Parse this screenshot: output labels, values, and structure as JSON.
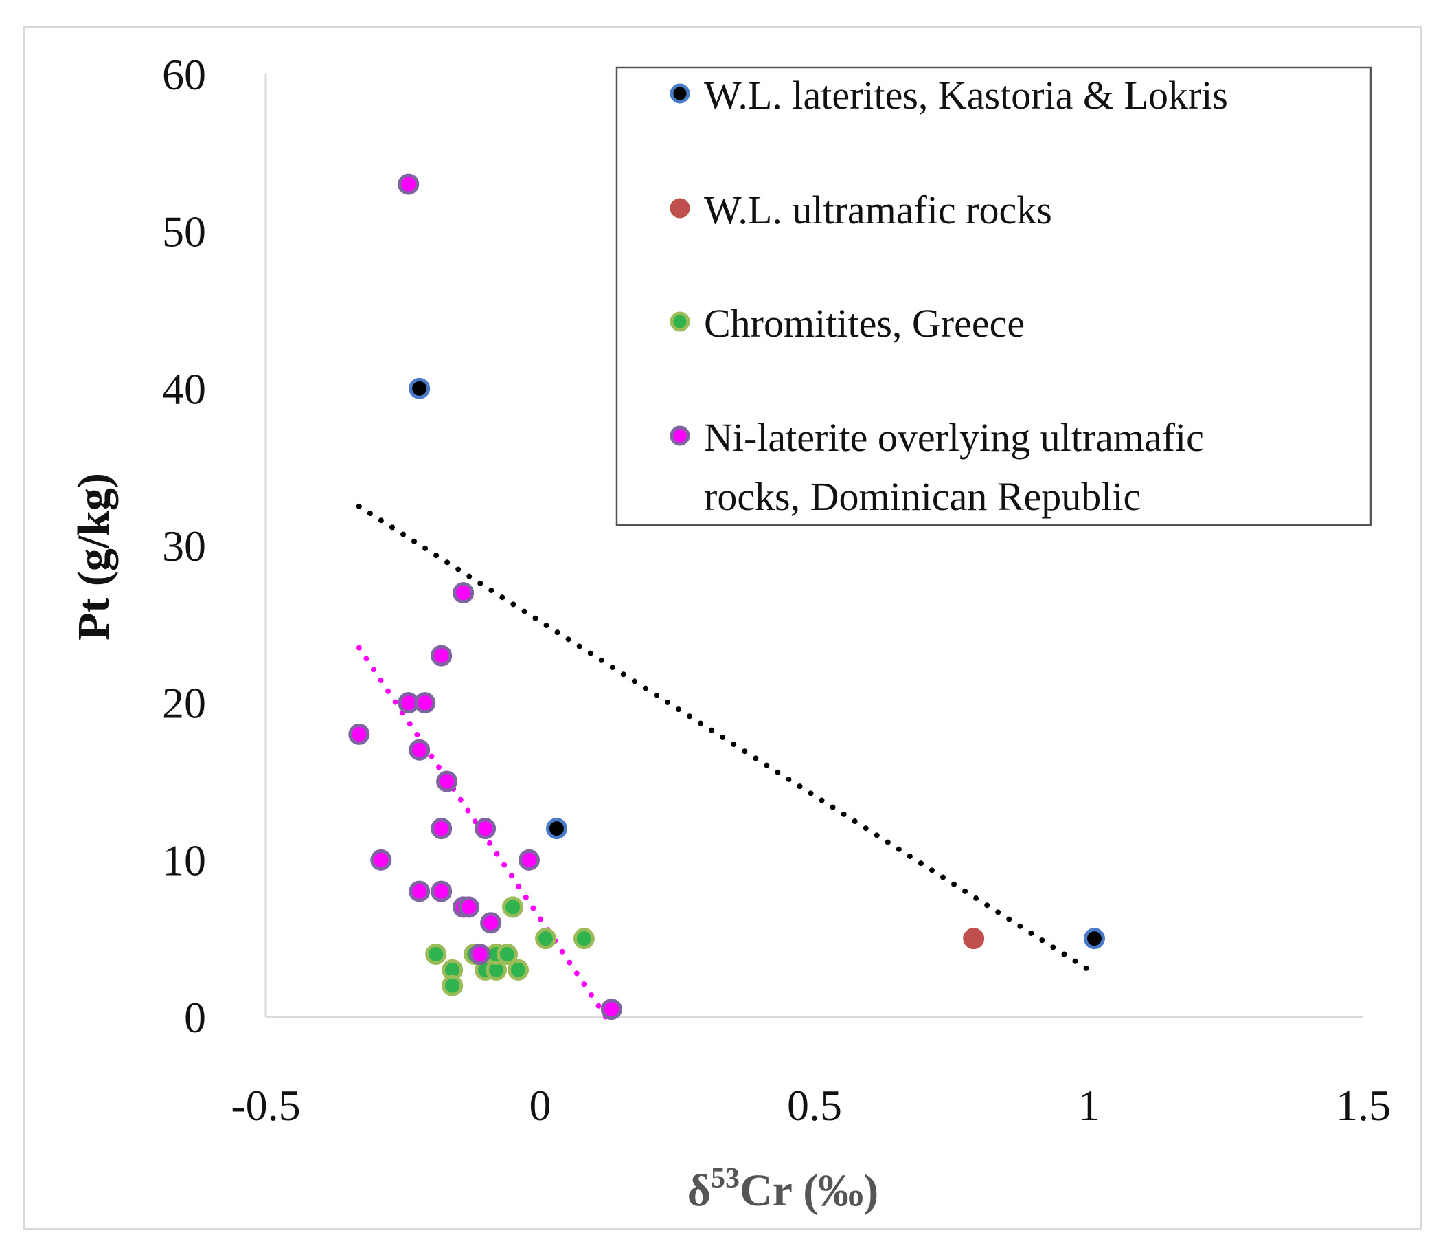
{
  "chart_data": {
    "type": "scatter",
    "title": "",
    "xlabel_prefix": "δ",
    "xlabel_sup": "53",
    "xlabel_suffix": "Cr (‰)",
    "ylabel": "Pt (g/kg)",
    "xlim": [
      -0.5,
      1.5
    ],
    "ylim": [
      0,
      60
    ],
    "xticks": [
      -0.5,
      0,
      0.5,
      1,
      1.5
    ],
    "xtick_labels": [
      "-0.5",
      "0",
      "0.5",
      "1",
      "1.5"
    ],
    "yticks": [
      0,
      10,
      20,
      30,
      40,
      50,
      60
    ],
    "ytick_labels": [
      "0",
      "10",
      "20",
      "30",
      "40",
      "50",
      "60"
    ],
    "grid": false,
    "legend_position": "top-right",
    "series": [
      {
        "name": "W.L. laterites, Kastoria & Lokris",
        "fill": "#000000",
        "stroke": "#4a7bc8",
        "points": [
          [
            -0.22,
            40
          ],
          [
            0.03,
            12
          ],
          [
            1.01,
            5
          ]
        ]
      },
      {
        "name": "W.L. ultramafic rocks",
        "fill": "#c0504d",
        "stroke": "#c0504d",
        "points": [
          [
            0.79,
            5
          ]
        ]
      },
      {
        "name": "Chromitites, Greece",
        "fill": "#2eb34f",
        "stroke": "#9bbb59",
        "points": [
          [
            -0.19,
            4
          ],
          [
            -0.16,
            3
          ],
          [
            -0.16,
            2
          ],
          [
            -0.12,
            4
          ],
          [
            -0.1,
            3
          ],
          [
            -0.08,
            3
          ],
          [
            -0.08,
            4
          ],
          [
            -0.06,
            4
          ],
          [
            -0.04,
            3
          ],
          [
            -0.05,
            7
          ],
          [
            0.01,
            5
          ],
          [
            0.08,
            5
          ]
        ]
      },
      {
        "name": "Ni-laterite overlying ultramafic rocks, Dominican Republic",
        "legend_lines": [
          "Ni-laterite overlying ultramafic",
          "rocks, Dominican Republic"
        ],
        "fill": "#ff00ff",
        "stroke": "#8064a2",
        "points": [
          [
            -0.24,
            53
          ],
          [
            -0.14,
            27
          ],
          [
            -0.18,
            23
          ],
          [
            -0.24,
            20
          ],
          [
            -0.21,
            20
          ],
          [
            -0.33,
            18
          ],
          [
            -0.22,
            17
          ],
          [
            -0.17,
            15
          ],
          [
            -0.18,
            12
          ],
          [
            -0.1,
            12
          ],
          [
            -0.29,
            10
          ],
          [
            -0.02,
            10
          ],
          [
            -0.22,
            8
          ],
          [
            -0.18,
            8
          ],
          [
            -0.14,
            7
          ],
          [
            -0.13,
            7
          ],
          [
            -0.09,
            6
          ],
          [
            -0.11,
            4
          ],
          [
            0.13,
            0.5
          ]
        ]
      }
    ],
    "trendlines": [
      {
        "series": "W.L. laterites, Kastoria & Lokris",
        "color": "#000000",
        "from": [
          -0.33,
          32.5
        ],
        "to": [
          1.0,
          3
        ]
      },
      {
        "series": "Ni-laterite overlying ultramafic rocks, Dominican Republic",
        "color": "#ff00ff",
        "from": [
          -0.33,
          23.5
        ],
        "to": [
          0.12,
          0
        ]
      }
    ]
  }
}
